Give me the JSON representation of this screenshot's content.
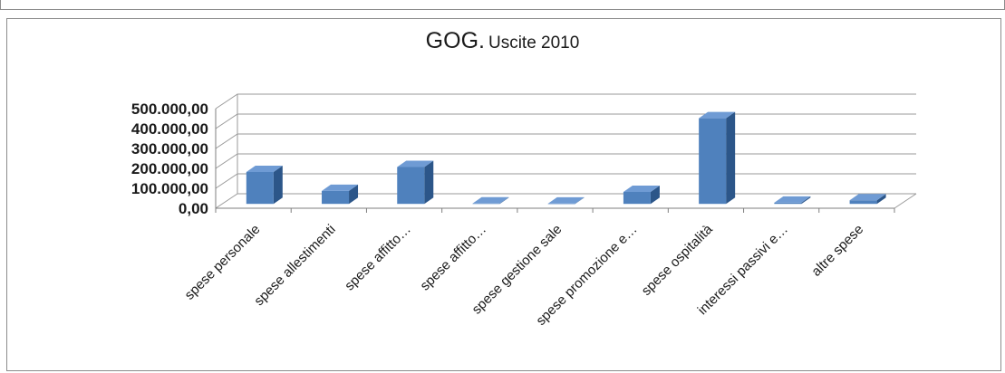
{
  "chart_data": {
    "type": "bar",
    "title": "GOG.",
    "subtitle": "Uscite 2010",
    "categories": [
      "spese personale",
      "spese allestimenti",
      "spese affitto…",
      "spese affitto…",
      "spese gestione sale",
      "spese promozione e…",
      "spese ospitalità",
      "interessi passivi e…",
      "altre spese"
    ],
    "values": [
      160000,
      65000,
      185000,
      2000,
      1500,
      60000,
      430000,
      6000,
      18000
    ],
    "ylim": [
      0,
      500000
    ],
    "ytick_labels": [
      "0,00",
      "100.000,00",
      "200.000,00",
      "300.000,00",
      "400.000,00",
      "500.000,00"
    ],
    "xlabel": "",
    "ylabel": "",
    "grid": true,
    "legend": "none",
    "bar_style": "3d-column",
    "colors": {
      "bar_front": "#4f81bd",
      "bar_side": "#2c5689",
      "bar_top": "#6f9bd4",
      "grid": "#9a9a9a",
      "axis": "#7f7f7f"
    }
  }
}
